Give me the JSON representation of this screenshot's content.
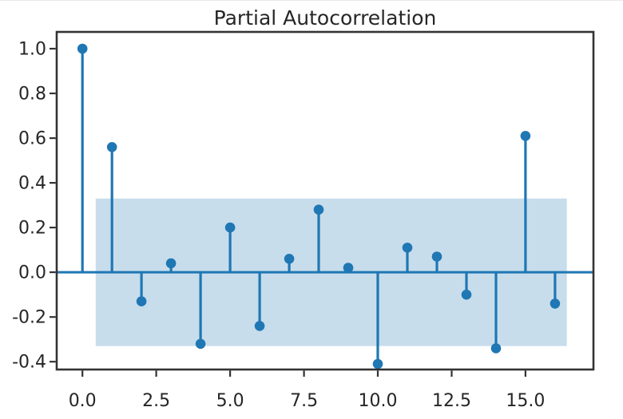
{
  "figure": {
    "title": "Partial Autocorrelation"
  },
  "colors": {
    "accent": "#1f77b4",
    "confidence_band": "rgba(31,119,180,0.25)",
    "spine": "#333333",
    "text": "#262626"
  },
  "chart_data": {
    "type": "stem",
    "title": "Partial Autocorrelation",
    "xlabel": "",
    "ylabel": "",
    "grid": false,
    "legend": null,
    "x": [
      0,
      1,
      2,
      3,
      4,
      5,
      6,
      7,
      8,
      9,
      10,
      11,
      12,
      13,
      14,
      15,
      16
    ],
    "values": [
      1.0,
      0.56,
      -0.13,
      0.04,
      -0.32,
      0.2,
      -0.24,
      0.06,
      0.28,
      0.02,
      -0.41,
      0.11,
      0.07,
      -0.1,
      -0.34,
      0.61,
      -0.14
    ],
    "confidence_band": {
      "upper": 0.33,
      "lower": -0.33,
      "x_start": 0.45,
      "x_end": 16.4
    },
    "xlim": [
      -0.87,
      17.3
    ],
    "ylim": [
      -0.435,
      1.075
    ],
    "xticks": [
      0,
      2.5,
      5,
      7.5,
      10,
      12.5,
      15
    ],
    "xtick_labels": [
      "0.0",
      "2.5",
      "5.0",
      "7.5",
      "10.0",
      "12.5",
      "15.0"
    ],
    "yticks": [
      1.0,
      0.8,
      0.6,
      0.4,
      0.2,
      0.0,
      -0.2,
      -0.4
    ],
    "ytick_labels": [
      "1.0",
      "0.8",
      "0.6",
      "0.4",
      "0.2",
      "0.0",
      "-0.2",
      "-0.4"
    ]
  }
}
